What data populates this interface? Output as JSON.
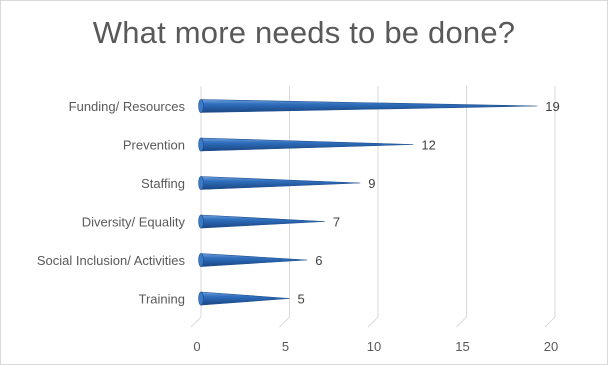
{
  "chart_data": {
    "type": "bar",
    "orientation": "horizontal",
    "title": "What more needs to be done?",
    "categories": [
      "Funding/ Resources",
      "Prevention",
      "Staffing",
      "Diversity/ Equality",
      "Social Inclusion/ Activities",
      "Training"
    ],
    "values": [
      19,
      12,
      9,
      7,
      6,
      5
    ],
    "xlim": [
      0,
      20
    ],
    "xticks": [
      0,
      5,
      10,
      15,
      20
    ],
    "grid": true,
    "legend": "none",
    "bar_color": "#2e6db5",
    "style": "3D cone"
  }
}
